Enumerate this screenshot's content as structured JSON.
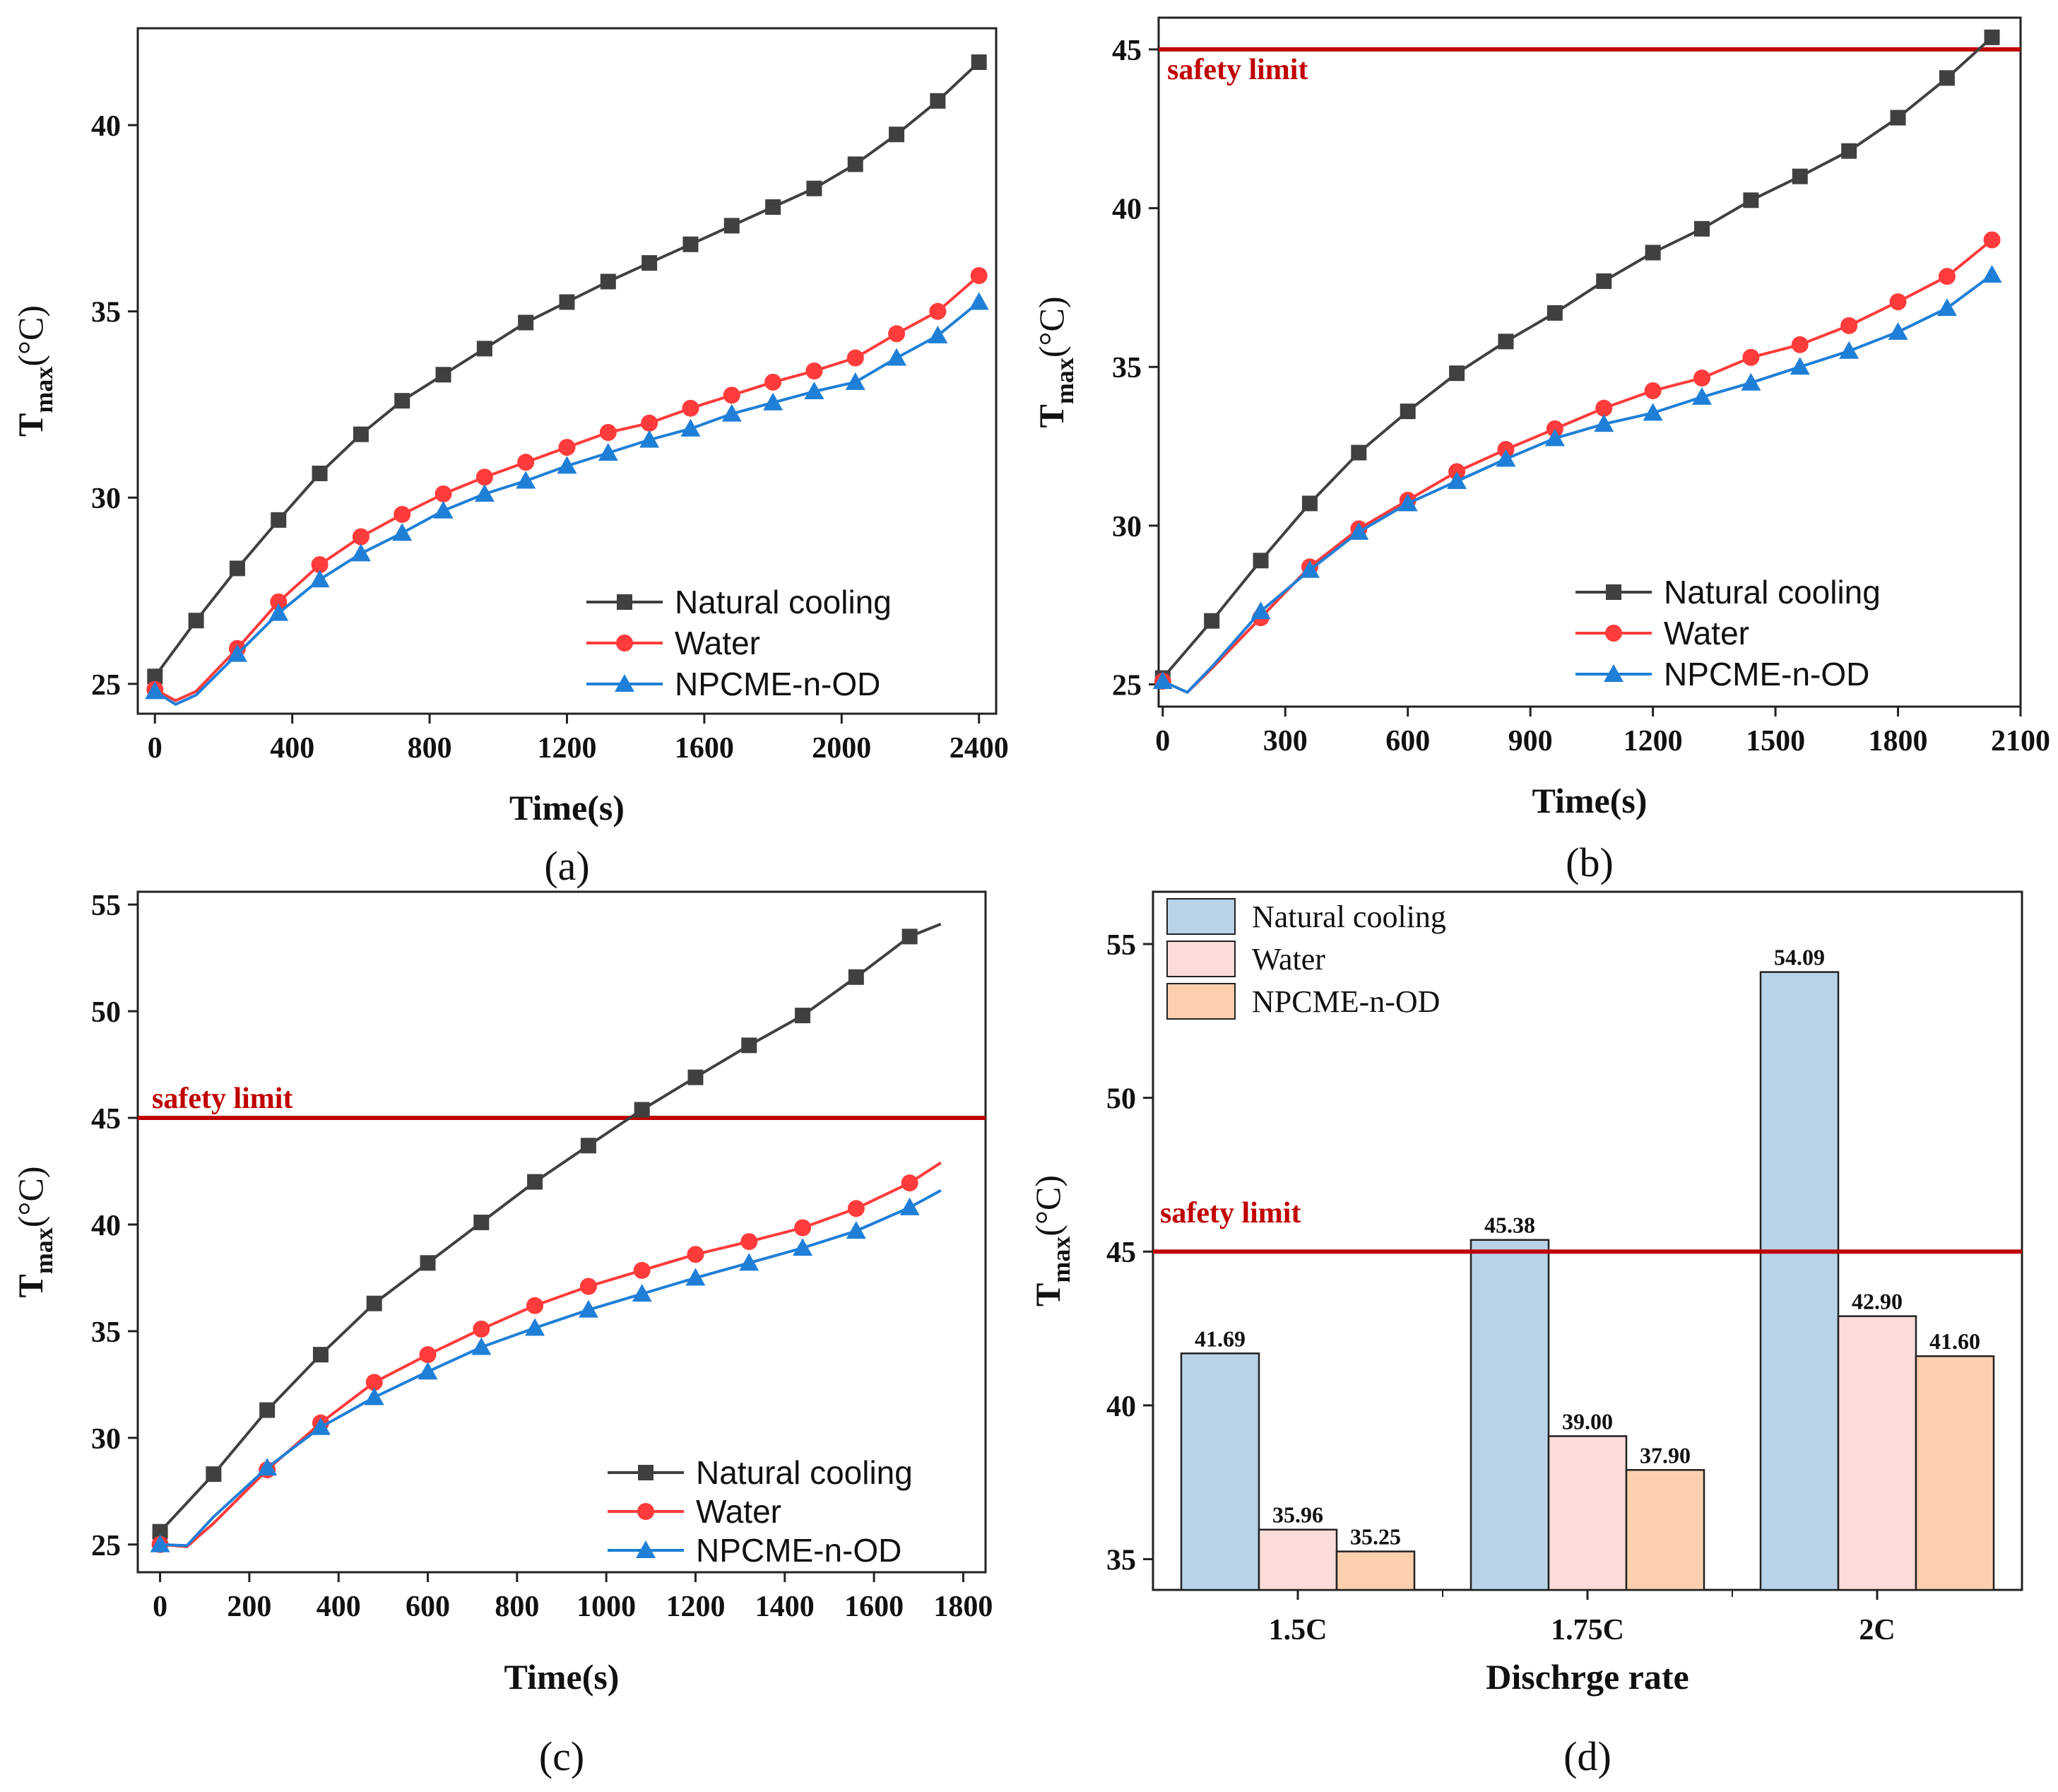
{
  "colors": {
    "natural": "#404040",
    "water": "#ff3b3b",
    "npcme": "#1f7fd6",
    "safety": "#c00000",
    "bar_natural": "#b8d3e8",
    "bar_water": "#fcdcd8",
    "bar_npcme": "#fcd0ae"
  },
  "chart_data": [
    {
      "id": "a",
      "type": "line",
      "panel_label": "(a)",
      "xlabel": "Time(s)",
      "ylabel_main": "T",
      "ylabel_sub": "max",
      "ylabel_unit": "(°C)",
      "xlim": [
        -50,
        2450
      ],
      "ylim": [
        24.2,
        42.6
      ],
      "xticks": [
        0,
        400,
        800,
        1200,
        1600,
        2000,
        2400
      ],
      "yticks": [
        25,
        30,
        35,
        40
      ],
      "legend": [
        "Natural cooling",
        "Water",
        "NPCME-n-OD"
      ],
      "safety_limit": null,
      "series": [
        {
          "name": "Natural cooling",
          "marker": "square",
          "x": [
            0,
            120,
            240,
            360,
            480,
            600,
            720,
            840,
            960,
            1080,
            1200,
            1320,
            1440,
            1560,
            1680,
            1800,
            1920,
            2040,
            2160,
            2280,
            2400
          ],
          "y": [
            25.2,
            26.7,
            28.1,
            29.4,
            30.65,
            31.7,
            32.6,
            33.3,
            34.0,
            34.7,
            35.25,
            35.8,
            36.3,
            36.8,
            37.3,
            37.8,
            38.3,
            38.95,
            39.75,
            40.65,
            41.69
          ]
        },
        {
          "name": "Water",
          "marker": "circle",
          "x": [
            0,
            60,
            120,
            240,
            360,
            480,
            600,
            720,
            840,
            960,
            1080,
            1200,
            1320,
            1440,
            1560,
            1680,
            1800,
            1920,
            2040,
            2160,
            2280,
            2400
          ],
          "y": [
            24.85,
            24.55,
            24.8,
            25.95,
            27.2,
            28.2,
            28.95,
            29.55,
            30.1,
            30.55,
            30.95,
            31.35,
            31.75,
            32.0,
            32.4,
            32.75,
            33.1,
            33.4,
            33.75,
            34.4,
            35.0,
            35.96
          ]
        },
        {
          "name": "NPCME-n-OD",
          "marker": "triangle",
          "x": [
            0,
            60,
            120,
            240,
            360,
            480,
            600,
            720,
            840,
            960,
            1080,
            1200,
            1320,
            1440,
            1560,
            1680,
            1800,
            1920,
            2040,
            2160,
            2280,
            2400
          ],
          "y": [
            24.8,
            24.45,
            24.7,
            25.8,
            26.9,
            27.8,
            28.5,
            29.05,
            29.65,
            30.1,
            30.45,
            30.85,
            31.2,
            31.55,
            31.85,
            32.25,
            32.55,
            32.85,
            33.1,
            33.75,
            34.35,
            35.25
          ]
        }
      ]
    },
    {
      "id": "b",
      "type": "line",
      "panel_label": "(b)",
      "xlabel": "Time(s)",
      "ylabel_main": "T",
      "ylabel_sub": "max",
      "ylabel_unit": "(°C)",
      "xlim": [
        -10,
        2100
      ],
      "ylim": [
        24.3,
        46.0
      ],
      "xticks": [
        0,
        300,
        600,
        900,
        1200,
        1500,
        1800,
        2100
      ],
      "yticks": [
        25,
        30,
        35,
        40,
        45
      ],
      "legend": [
        "Natural cooling",
        "Water",
        "NPCME-n-OD"
      ],
      "safety_limit": {
        "value": 45,
        "label": "safety limit"
      },
      "series": [
        {
          "name": "Natural cooling",
          "marker": "square",
          "x": [
            0,
            120,
            240,
            360,
            480,
            600,
            720,
            840,
            960,
            1080,
            1200,
            1320,
            1440,
            1560,
            1680,
            1800,
            1920,
            2030
          ],
          "y": [
            25.2,
            27.0,
            28.9,
            30.7,
            32.3,
            33.6,
            34.8,
            35.8,
            36.7,
            37.7,
            38.6,
            39.35,
            40.25,
            41.0,
            41.8,
            42.85,
            44.1,
            45.38
          ]
        },
        {
          "name": "Water",
          "marker": "circle",
          "x": [
            0,
            60,
            120,
            240,
            360,
            480,
            600,
            720,
            840,
            960,
            1080,
            1200,
            1320,
            1440,
            1560,
            1680,
            1800,
            1920,
            2030
          ],
          "y": [
            25.1,
            24.75,
            25.5,
            27.1,
            28.7,
            29.9,
            30.8,
            31.7,
            32.4,
            33.05,
            33.7,
            34.25,
            34.65,
            35.3,
            35.7,
            36.3,
            37.05,
            37.85,
            39.0
          ]
        },
        {
          "name": "NPCME-n-OD",
          "marker": "triangle",
          "x": [
            0,
            60,
            120,
            240,
            360,
            480,
            600,
            720,
            840,
            960,
            1080,
            1200,
            1320,
            1440,
            1560,
            1680,
            1800,
            1920,
            2030
          ],
          "y": [
            25.1,
            24.75,
            25.55,
            27.3,
            28.6,
            29.8,
            30.7,
            31.4,
            32.1,
            32.75,
            33.2,
            33.55,
            34.05,
            34.5,
            35.0,
            35.5,
            36.1,
            36.85,
            37.9
          ]
        }
      ]
    },
    {
      "id": "c",
      "type": "line",
      "panel_label": "(c)",
      "xlabel": "Time(s)",
      "ylabel_main": "T",
      "ylabel_sub": "max",
      "ylabel_unit": "(°C)",
      "xlim": [
        -50,
        1850
      ],
      "ylim": [
        23.7,
        55.6
      ],
      "xticks": [
        0,
        200,
        400,
        600,
        800,
        1000,
        1200,
        1400,
        1600,
        1800
      ],
      "yticks": [
        25,
        30,
        35,
        40,
        45,
        50,
        55
      ],
      "legend": [
        "Natural cooling",
        "Water",
        "NPCME-n-OD"
      ],
      "safety_limit": {
        "value": 45,
        "label": "safety limit"
      },
      "series": [
        {
          "name": "Natural cooling",
          "marker": "square",
          "x": [
            0,
            120,
            240,
            360,
            480,
            600,
            720,
            840,
            960,
            1080,
            1200,
            1320,
            1440,
            1560,
            1680,
            1750
          ],
          "y": [
            25.6,
            28.3,
            31.3,
            33.9,
            36.3,
            38.2,
            40.1,
            42.0,
            43.7,
            45.38,
            46.9,
            48.4,
            49.8,
            51.6,
            53.5,
            54.09
          ]
        },
        {
          "name": "Water",
          "marker": "circle",
          "x": [
            0,
            60,
            120,
            240,
            360,
            480,
            600,
            720,
            840,
            960,
            1080,
            1200,
            1320,
            1440,
            1560,
            1680,
            1750
          ],
          "y": [
            25.0,
            24.9,
            26.0,
            28.5,
            30.7,
            32.6,
            33.9,
            35.1,
            36.2,
            37.1,
            37.85,
            38.6,
            39.2,
            39.85,
            40.75,
            41.95,
            42.9
          ]
        },
        {
          "name": "NPCME-n-OD",
          "marker": "triangle",
          "x": [
            0,
            60,
            120,
            240,
            360,
            480,
            600,
            720,
            840,
            960,
            1080,
            1200,
            1320,
            1440,
            1560,
            1680,
            1750
          ],
          "y": [
            25.0,
            24.95,
            26.3,
            28.6,
            30.5,
            31.9,
            33.1,
            34.25,
            35.15,
            36.0,
            36.75,
            37.5,
            38.2,
            38.9,
            39.7,
            40.8,
            41.6
          ]
        }
      ]
    },
    {
      "id": "d",
      "type": "bar",
      "panel_label": "(d)",
      "xlabel": "Dischrge rate",
      "ylabel_main": "T",
      "ylabel_sub": "max",
      "ylabel_unit": "(°C)",
      "ylim": [
        34.0,
        56.7
      ],
      "yticks": [
        35,
        40,
        45,
        50,
        55
      ],
      "categories": [
        "1.5C",
        "1.75C",
        "2C"
      ],
      "legend": [
        "Natural cooling",
        "Water",
        "NPCME-n-OD"
      ],
      "safety_limit": {
        "value": 45,
        "label": "safety limit"
      },
      "series": [
        {
          "name": "Natural cooling",
          "values": [
            41.69,
            45.38,
            54.09
          ],
          "labels": [
            "41.69",
            "45.38",
            "54.09"
          ]
        },
        {
          "name": "Water",
          "values": [
            35.96,
            39.0,
            42.9
          ],
          "labels": [
            "35.96",
            "39.00",
            "42.90"
          ]
        },
        {
          "name": "NPCME-n-OD",
          "values": [
            35.25,
            37.9,
            41.6
          ],
          "labels": [
            "35.25",
            "37.90",
            "41.60"
          ]
        }
      ]
    }
  ]
}
